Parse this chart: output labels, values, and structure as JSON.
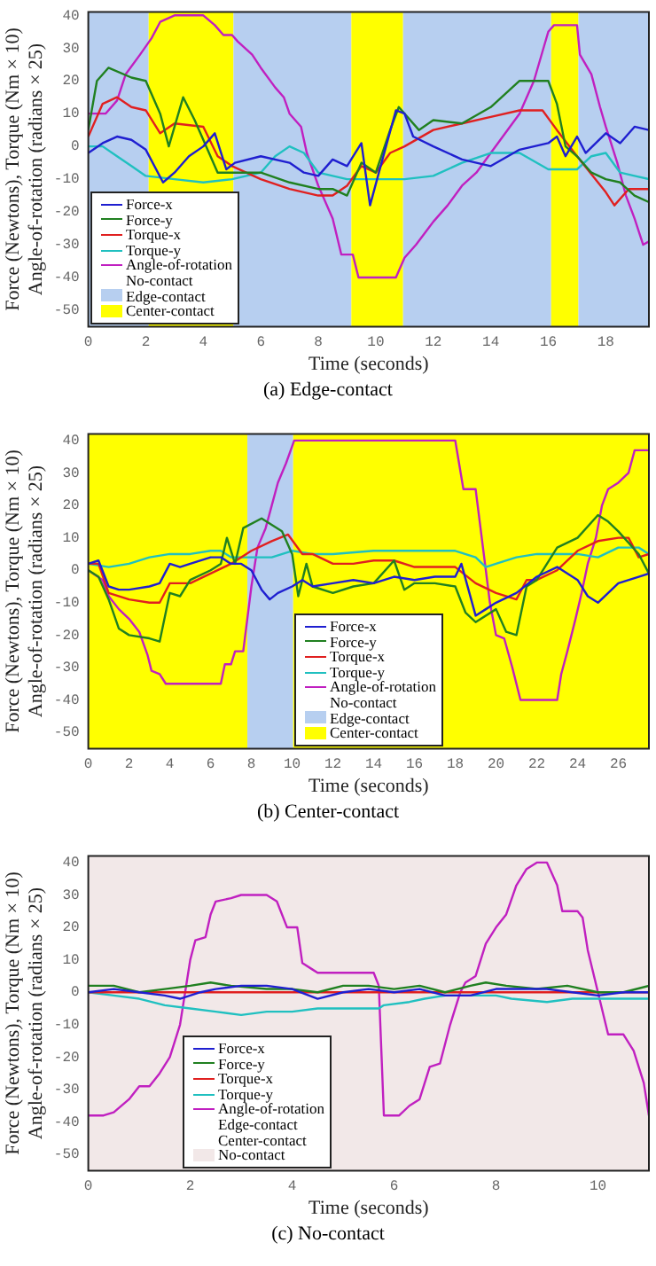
{
  "chart_data": [
    {
      "type": "line",
      "title": "(a) Edge-contact",
      "xlabel": "Time (seconds)",
      "ylabel": "Force (Newtons), Torque (Nm × 10)\nAngle-of-rotation (radians × 25)",
      "xlim": [
        0,
        19.5
      ],
      "xticks": [
        0,
        2,
        4,
        6,
        8,
        10,
        12,
        14,
        16,
        18
      ],
      "ylim": [
        -55,
        41
      ],
      "yticks": [
        -50,
        -40,
        -30,
        -20,
        -10,
        0,
        10,
        20,
        30,
        40
      ],
      "legend": "bottom left",
      "annotations": [
        "No-contact"
      ],
      "bands": [
        {
          "axis": "x",
          "from": 0,
          "to": 2.1,
          "label": "Edge-contact",
          "color": "#b7cff0"
        },
        {
          "axis": "x",
          "from": 2.1,
          "to": 5.05,
          "label": "Center-contact",
          "color": "#ffff00"
        },
        {
          "axis": "x",
          "from": 5.05,
          "to": 9.15,
          "color": "#b7cff0"
        },
        {
          "axis": "x",
          "from": 9.15,
          "to": 10.95,
          "color": "#ffff00"
        },
        {
          "axis": "x",
          "from": 10.95,
          "to": 16.1,
          "color": "#b7cff0"
        },
        {
          "axis": "x",
          "from": 16.1,
          "to": 17.05,
          "color": "#ffff00"
        },
        {
          "axis": "x",
          "from": 17.05,
          "to": 19.5,
          "color": "#b7cff0"
        }
      ],
      "series": [
        {
          "name": "Force-x",
          "color": "#1f1fd0",
          "x": [
            0,
            0.5,
            1,
            1.5,
            2,
            2.6,
            3,
            3.5,
            4,
            4.4,
            4.8,
            5.1,
            6,
            7,
            7.5,
            8,
            8.5,
            9,
            9.5,
            9.8,
            10.2,
            10.7,
            11,
            11.3,
            12,
            13,
            14,
            15,
            16,
            16.3,
            16.6,
            17,
            17.3,
            18,
            18.5,
            19,
            19.5
          ],
          "values": [
            -2,
            1,
            3,
            2,
            -1,
            -11,
            -8,
            -3,
            0,
            4,
            -7,
            -5,
            -3,
            -5,
            -8,
            -9,
            -4,
            -6,
            1,
            -18,
            -5,
            11,
            10,
            3,
            0,
            -4,
            -6,
            -1,
            1,
            3,
            -3,
            3,
            -2,
            4,
            1,
            6,
            5
          ]
        },
        {
          "name": "Force-y",
          "color": "#208020",
          "x": [
            0,
            0.3,
            0.7,
            1.5,
            2,
            2.5,
            2.8,
            3.3,
            3.7,
            4.5,
            5,
            6,
            7,
            8,
            8.5,
            9,
            9.5,
            10,
            10.5,
            10.8,
            11.5,
            12,
            13,
            14,
            15,
            16,
            16.3,
            16.6,
            17,
            17.5,
            18,
            18.5,
            19,
            19.5
          ],
          "values": [
            5,
            20,
            24,
            21,
            20,
            10,
            0,
            15,
            8,
            -8,
            -8,
            -8,
            -11,
            -13,
            -13,
            -15,
            -5,
            -8,
            5,
            12,
            5,
            8,
            7,
            12,
            20,
            20,
            13,
            0,
            -3,
            -8,
            -10,
            -11,
            -15,
            -17
          ]
        },
        {
          "name": "Torque-x",
          "color": "#e02020",
          "x": [
            0,
            0.5,
            1,
            1.5,
            2,
            2.5,
            3,
            4,
            4.5,
            5,
            6,
            7,
            8,
            8.5,
            9,
            9.5,
            10,
            10.5,
            11,
            12,
            13,
            14,
            15,
            15.8,
            16.3,
            17,
            18,
            18.3,
            18.8,
            19.5
          ],
          "values": [
            3,
            13,
            15,
            12,
            11,
            4,
            7,
            6,
            -3,
            -6,
            -10,
            -13,
            -15,
            -15,
            -12,
            -6,
            -8,
            -2,
            0,
            5,
            7,
            9,
            11,
            11,
            5,
            -3,
            -14,
            -18,
            -13,
            -13
          ]
        },
        {
          "name": "Torque-y",
          "color": "#20c0c0",
          "x": [
            0,
            0.5,
            1,
            1.5,
            2,
            3,
            4,
            5,
            6,
            6.5,
            7,
            7.5,
            8,
            9,
            10,
            11,
            12,
            13,
            14,
            15,
            16,
            17,
            17.5,
            18,
            18.5,
            19,
            19.5
          ],
          "values": [
            0,
            0,
            -3,
            -6,
            -9,
            -10,
            -11,
            -10,
            -8,
            -3,
            0,
            -2,
            -8,
            -10,
            -10,
            -10,
            -9,
            -5,
            -2,
            -2,
            -7,
            -7,
            -3,
            -2,
            -8,
            -9,
            -10
          ]
        },
        {
          "name": "Angle-of-rotation",
          "color": "#c020c0",
          "x": [
            0,
            0.6,
            1,
            1.3,
            1.8,
            2.2,
            2.5,
            3,
            4,
            4.4,
            4.7,
            5,
            5.2,
            5.7,
            6,
            6.5,
            6.8,
            7,
            7.4,
            7.6,
            8,
            8.5,
            8.8,
            9.2,
            9.4,
            10.7,
            11,
            11.4,
            12,
            12.5,
            13,
            13.5,
            14,
            15,
            15.5,
            16,
            16.2,
            17,
            17.1,
            17.5,
            17.8,
            18,
            18.4,
            18.7,
            19,
            19.3,
            19.5
          ],
          "values": [
            10,
            10,
            14,
            22,
            28,
            33,
            38,
            40,
            40,
            37,
            34,
            34,
            32,
            28,
            24,
            18,
            15,
            10,
            6,
            -2,
            -12,
            -22,
            -33,
            -33,
            -40,
            -40,
            -34,
            -30,
            -23,
            -18,
            -12,
            -8,
            -2,
            10,
            20,
            35,
            37,
            37,
            28,
            22,
            12,
            6,
            -5,
            -15,
            -22,
            -30,
            -29
          ]
        }
      ]
    },
    {
      "type": "line",
      "title": "(b) Center-contact",
      "xlabel": "Time (seconds)",
      "ylabel": "Force (Newtons), Torque (Nm × 10)\nAngle-of-rotation (radians × 25)",
      "xlim": [
        0,
        27.5
      ],
      "xticks": [
        0,
        2,
        4,
        6,
        8,
        10,
        12,
        14,
        16,
        18,
        20,
        22,
        24,
        26
      ],
      "ylim": [
        -55,
        42
      ],
      "yticks": [
        -50,
        -40,
        -30,
        -20,
        -10,
        0,
        10,
        20,
        30,
        40
      ],
      "legend": "bottom",
      "annotations": [
        "No-contact"
      ],
      "bands": [
        {
          "axis": "x",
          "from": 7.8,
          "to": 10.05,
          "label": "Edge-contact",
          "color": "#b7cff0"
        },
        {
          "axis": "x",
          "from": 0,
          "to": 7.8,
          "color": "#ffff00"
        },
        {
          "axis": "x",
          "from": 10.05,
          "to": 27.5,
          "label": "Center-contact",
          "color": "#ffff00"
        }
      ],
      "series": [
        {
          "name": "Force-x",
          "color": "#1f1fd0",
          "x": [
            0,
            0.5,
            1,
            1.5,
            2,
            3,
            3.5,
            4,
            4.5,
            5,
            6,
            6.5,
            7,
            7.5,
            8,
            8.5,
            8.9,
            9.3,
            10,
            10.5,
            11,
            12,
            13,
            14,
            15,
            16,
            17,
            18,
            18.3,
            19,
            19.5,
            20,
            21,
            22,
            23,
            24,
            24.5,
            25,
            25.5,
            26,
            27,
            27.5
          ],
          "values": [
            2,
            3,
            -5,
            -6,
            -6,
            -5,
            -4,
            2,
            1,
            2,
            4,
            4,
            2,
            2,
            0,
            -6,
            -9,
            -7,
            -5,
            -3,
            -5,
            -4,
            -3,
            -4,
            -2,
            -3,
            -2,
            -2,
            2,
            -14,
            -12,
            -10,
            -7,
            -2,
            1,
            -3,
            -8,
            -10,
            -7,
            -4,
            -2,
            -1
          ]
        },
        {
          "name": "Force-y",
          "color": "#208020",
          "x": [
            0,
            0.5,
            1,
            1.5,
            2,
            3,
            3.5,
            4,
            4.5,
            5,
            6,
            6.5,
            6.8,
            7.2,
            7.6,
            8.5,
            9.5,
            10,
            10.3,
            10.7,
            11,
            12,
            13,
            14,
            15,
            15.5,
            16,
            17,
            18,
            18.5,
            19,
            20,
            20.5,
            21,
            21.5,
            22,
            23,
            24,
            25,
            25.5,
            26,
            27,
            27.5
          ],
          "values": [
            0,
            -2,
            -9,
            -18,
            -20,
            -21,
            -22,
            -7,
            -8,
            -3,
            0,
            2,
            10,
            2,
            13,
            16,
            12,
            5,
            -8,
            2,
            -5,
            -7,
            -5,
            -4,
            3,
            -6,
            -4,
            -4,
            -5,
            -13,
            -16,
            -12,
            -19,
            -20,
            -5,
            -3,
            7,
            10,
            17,
            15,
            12,
            5,
            -1
          ]
        },
        {
          "name": "Torque-x",
          "color": "#e02020",
          "x": [
            0,
            0.5,
            1,
            2,
            3,
            3.5,
            4,
            5,
            6,
            7,
            8,
            9,
            9.8,
            10.5,
            11,
            12,
            13,
            14,
            15,
            16,
            18,
            19,
            20,
            21,
            21.5,
            22,
            23,
            24,
            25,
            26,
            26.5,
            27,
            27.5
          ],
          "values": [
            2,
            2,
            -7,
            -9,
            -10,
            -10,
            -4,
            -4,
            -1,
            2,
            6,
            9,
            11,
            5,
            5,
            2,
            2,
            3,
            3,
            1,
            1,
            -4,
            -7,
            -9,
            -3,
            -3,
            0,
            6,
            9,
            10,
            10,
            4,
            5
          ]
        },
        {
          "name": "Torque-y",
          "color": "#20c0c0",
          "x": [
            0,
            1,
            2,
            3,
            4,
            5,
            6,
            6.5,
            7,
            8,
            9,
            10,
            11,
            12,
            14,
            16,
            18,
            19,
            19.5,
            20,
            21,
            22,
            24,
            25,
            26,
            27,
            27.5
          ],
          "values": [
            2,
            1,
            2,
            4,
            5,
            5,
            6,
            6,
            4,
            4,
            4,
            6,
            5,
            5,
            6,
            6,
            6,
            4,
            1,
            2,
            4,
            5,
            5,
            4,
            7,
            7,
            5
          ]
        },
        {
          "name": "Angle-of-rotation",
          "color": "#c020c0",
          "x": [
            0,
            0.7,
            1,
            1.5,
            2,
            2.5,
            2.9,
            3.1,
            3.5,
            3.8,
            4,
            6.5,
            6.7,
            7,
            7.2,
            7.6,
            7.8,
            8,
            8.3,
            8.7,
            9,
            9.3,
            9.7,
            10.1,
            18,
            18.4,
            19,
            19.2,
            19.5,
            19.7,
            20,
            20.4,
            20.8,
            21.2,
            23,
            23.2,
            23.5,
            23.9,
            24.2,
            24.5,
            24.9,
            25.2,
            25.5,
            26,
            26.5,
            26.8,
            27.5
          ],
          "values": [
            0,
            -3,
            -8,
            -12,
            -15,
            -19,
            -26,
            -31,
            -32,
            -35,
            -35,
            -35,
            -29,
            -29,
            -25,
            -25,
            -15,
            -5,
            7,
            13,
            20,
            27,
            33,
            40,
            40,
            25,
            25,
            15,
            0,
            -10,
            -20,
            -21,
            -30,
            -40,
            -40,
            -32,
            -25,
            -15,
            -7,
            2,
            10,
            20,
            25,
            27,
            30,
            37,
            37
          ]
        }
      ]
    },
    {
      "type": "line",
      "title": "(c) No-contact",
      "xlabel": "Time (seconds)",
      "ylabel": "Force (Newtons), Torque (Nm × 10)\nAngle-of-rotation (radians × 25)",
      "xlim": [
        0,
        11
      ],
      "xticks": [
        0,
        2,
        4,
        6,
        8,
        10
      ],
      "ylim": [
        -55,
        42
      ],
      "yticks": [
        -50,
        -40,
        -30,
        -20,
        -10,
        0,
        10,
        20,
        30,
        40
      ],
      "legend": "bottom left",
      "bands": [
        {
          "axis": "x",
          "from": 0,
          "to": 11,
          "label": "No-contact",
          "color": "#f2e8e8"
        }
      ],
      "annotations": [
        "Edge-contact",
        "Center-contact"
      ],
      "series": [
        {
          "name": "Force-x",
          "color": "#1f1fd0",
          "x": [
            0,
            0.5,
            1,
            1.5,
            1.8,
            2.2,
            2.5,
            3,
            3.5,
            4,
            4.5,
            5,
            5.5,
            6,
            6.5,
            7,
            7.5,
            8,
            8.5,
            9,
            9.5,
            10,
            10.5,
            11
          ],
          "values": [
            0,
            1,
            0,
            -1,
            -2,
            0,
            1,
            2,
            2,
            1,
            -2,
            0,
            1,
            0,
            1,
            -1,
            -1,
            1,
            1,
            1,
            0,
            -1,
            0,
            0
          ]
        },
        {
          "name": "Force-y",
          "color": "#208020",
          "x": [
            0,
            0.5,
            1,
            1.5,
            2,
            2.4,
            2.8,
            3.5,
            4,
            4.5,
            5,
            5.5,
            6,
            6.5,
            7,
            7.5,
            7.8,
            8.2,
            8.8,
            9.4,
            10,
            10.5,
            11
          ],
          "values": [
            2,
            2,
            0,
            1,
            2,
            3,
            2,
            1,
            1,
            0,
            2,
            2,
            1,
            2,
            0,
            2,
            3,
            2,
            1,
            2,
            0,
            0,
            2
          ]
        },
        {
          "name": "Torque-x",
          "color": "#e02020",
          "x": [
            0,
            2,
            4,
            6,
            8,
            10,
            11
          ],
          "values": [
            0,
            0,
            0,
            0,
            0,
            0,
            0
          ]
        },
        {
          "name": "Torque-y",
          "color": "#20c0c0",
          "x": [
            0,
            0.5,
            1,
            1.5,
            2,
            2.5,
            3,
            3.5,
            4,
            4.5,
            5,
            5.7,
            5.8,
            6.3,
            6.6,
            7,
            7.5,
            8,
            8.3,
            9,
            9.5,
            10,
            11
          ],
          "values": [
            0,
            -1,
            -2,
            -4,
            -5,
            -6,
            -7,
            -6,
            -6,
            -5,
            -5,
            -5,
            -4,
            -3,
            -2,
            -1,
            -1,
            -1,
            -2,
            -3,
            -2,
            -2,
            -2
          ]
        },
        {
          "name": "Angle-of-rotation",
          "color": "#c020c0",
          "x": [
            0,
            0.3,
            0.5,
            0.8,
            1,
            1.2,
            1.4,
            1.6,
            1.8,
            1.9,
            2,
            2.1,
            2.3,
            2.4,
            2.5,
            2.8,
            3,
            3.5,
            3.7,
            3.9,
            4.1,
            4.2,
            4.4,
            4.5,
            5.6,
            5.7,
            5.8,
            6.1,
            6.3,
            6.5,
            6.7,
            6.9,
            7.1,
            7.3,
            7.4,
            7.6,
            7.8,
            8,
            8.2,
            8.4,
            8.6,
            8.8,
            9,
            9.2,
            9.3,
            9.6,
            9.7,
            9.8,
            10,
            10.2,
            10.5,
            10.7,
            10.9,
            11
          ],
          "values": [
            -38,
            -38,
            -37,
            -33,
            -29,
            -29,
            -25,
            -20,
            -10,
            0,
            10,
            16,
            17,
            24,
            28,
            29,
            30,
            30,
            28,
            20,
            20,
            9,
            7,
            6,
            6,
            2,
            -38,
            -38,
            -35,
            -33,
            -23,
            -22,
            -10,
            0,
            3,
            5,
            15,
            20,
            24,
            33,
            38,
            40,
            40,
            33,
            25,
            25,
            23,
            13,
            0,
            -13,
            -13,
            -18,
            -28,
            -38
          ]
        }
      ]
    }
  ]
}
